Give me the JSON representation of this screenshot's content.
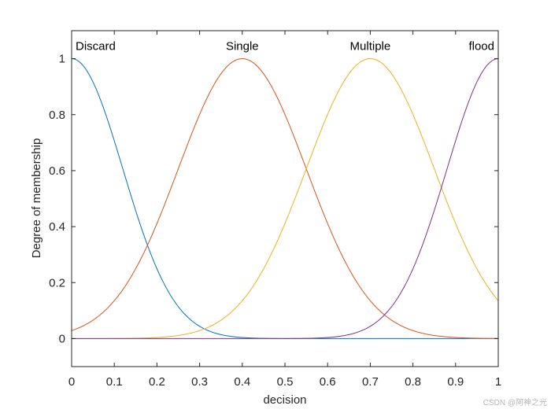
{
  "chart_data": {
    "type": "line",
    "title": "",
    "xlabel": "decision",
    "ylabel": "Degree of membership",
    "xlim": [
      0,
      1
    ],
    "ylim": [
      -0.1,
      1.1
    ],
    "xticks": [
      0,
      0.1,
      0.2,
      0.3,
      0.4,
      0.5,
      0.6,
      0.7,
      0.8,
      0.9,
      1
    ],
    "xtick_labels": [
      "0",
      "0.1",
      "0.2",
      "0.3",
      "0.4",
      "0.5",
      "0.6",
      "0.7",
      "0.8",
      "0.9",
      "1"
    ],
    "yticks": [
      0,
      0.2,
      0.4,
      0.6,
      0.8,
      1
    ],
    "ytick_labels": [
      "0",
      "0.2",
      "0.4",
      "0.6",
      "0.8",
      "1"
    ],
    "grid": false,
    "series": [
      {
        "name": "Discard",
        "shape": "gaussmf",
        "center": 0.0,
        "sigma": 0.12,
        "color": "#0072BD",
        "x": [
          0,
          0.05,
          0.1,
          0.15,
          0.2,
          0.25,
          0.3,
          0.35,
          0.4,
          0.5,
          0.6,
          0.8,
          1.0
        ],
        "y": [
          1.0,
          0.917,
          0.707,
          0.458,
          0.249,
          0.114,
          0.044,
          0.014,
          0.004,
          0.0002,
          0.0,
          0.0,
          0.0
        ]
      },
      {
        "name": "Single",
        "shape": "gaussmf",
        "center": 0.4,
        "sigma": 0.15,
        "color": "#D95319",
        "x": [
          0,
          0.1,
          0.2,
          0.3,
          0.4,
          0.5,
          0.6,
          0.7,
          0.8,
          0.9,
          1.0
        ],
        "y": [
          0.029,
          0.135,
          0.411,
          0.801,
          1.0,
          0.801,
          0.411,
          0.135,
          0.029,
          0.004,
          0.0003
        ]
      },
      {
        "name": "Multiple",
        "shape": "gaussmf",
        "center": 0.7,
        "sigma": 0.15,
        "color": "#EDB120",
        "x": [
          0,
          0.2,
          0.3,
          0.4,
          0.5,
          0.6,
          0.7,
          0.8,
          0.9,
          1.0
        ],
        "y": [
          0.0,
          0.004,
          0.029,
          0.135,
          0.411,
          0.801,
          1.0,
          0.801,
          0.411,
          0.135
        ]
      },
      {
        "name": "flood",
        "shape": "gaussmf",
        "center": 1.0,
        "sigma": 0.12,
        "color": "#7E2F8E",
        "x": [
          0.4,
          0.5,
          0.6,
          0.65,
          0.7,
          0.75,
          0.8,
          0.85,
          0.9,
          0.95,
          1.0
        ],
        "y": [
          0.0,
          0.0002,
          0.004,
          0.014,
          0.044,
          0.114,
          0.249,
          0.458,
          0.707,
          0.917,
          1.0
        ]
      }
    ]
  },
  "watermark": "CSDN @阿神之光"
}
